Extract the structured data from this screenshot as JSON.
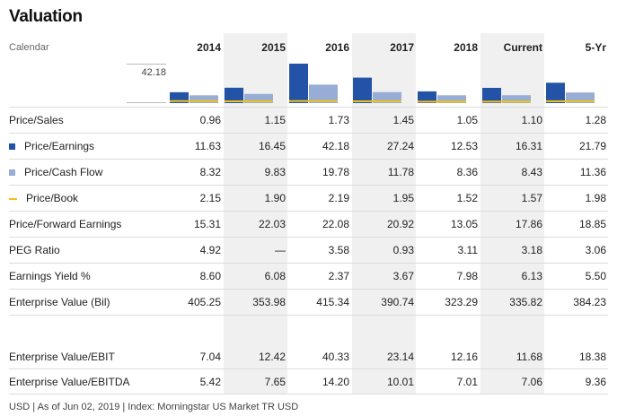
{
  "title": "Valuation",
  "calendar_label": "Calendar",
  "max_label": "42.18",
  "footer": "USD | As of Jun 02, 2019 | Index: Morningstar US Market TR USD",
  "colors": {
    "earnings": "#2353a7",
    "cashflow": "#97add6",
    "book": "#f2c314",
    "shade": "#f0f0f0"
  },
  "columns": [
    "2014",
    "2015",
    "2016",
    "2017",
    "2018",
    "Current",
    "5-Yr"
  ],
  "rows": [
    {
      "label": "Price/Sales",
      "values": [
        "0.96",
        "1.15",
        "1.73",
        "1.45",
        "1.05",
        "1.10",
        "1.28"
      ]
    },
    {
      "label": "Price/Earnings",
      "values": [
        "11.63",
        "16.45",
        "42.18",
        "27.24",
        "12.53",
        "16.31",
        "21.79"
      ]
    },
    {
      "label": "Price/Cash Flow",
      "values": [
        "8.32",
        "9.83",
        "19.78",
        "11.78",
        "8.36",
        "8.43",
        "11.36"
      ]
    },
    {
      "label": "Price/Book",
      "values": [
        "2.15",
        "1.90",
        "2.19",
        "1.95",
        "1.52",
        "1.57",
        "1.98"
      ]
    },
    {
      "label": "Price/Forward Earnings",
      "values": [
        "15.31",
        "22.03",
        "22.08",
        "20.92",
        "13.05",
        "17.86",
        "18.85"
      ]
    },
    {
      "label": "PEG Ratio",
      "values": [
        "4.92",
        "—",
        "3.58",
        "0.93",
        "3.11",
        "3.18",
        "3.06"
      ]
    },
    {
      "label": "Earnings Yield %",
      "values": [
        "8.60",
        "6.08",
        "2.37",
        "3.67",
        "7.98",
        "6.13",
        "5.50"
      ]
    },
    {
      "label": "Enterprise Value (Bil)",
      "values": [
        "405.25",
        "353.98",
        "415.34",
        "390.74",
        "323.29",
        "335.82",
        "384.23"
      ]
    },
    {
      "label": "Enterprise Value/EBIT",
      "values": [
        "7.04",
        "12.42",
        "40.33",
        "23.14",
        "12.16",
        "11.68",
        "18.38"
      ]
    },
    {
      "label": "Enterprise Value/EBITDA",
      "values": [
        "5.42",
        "7.65",
        "14.20",
        "10.01",
        "7.01",
        "7.06",
        "9.36"
      ]
    }
  ],
  "chart_data": {
    "type": "bar",
    "categories": [
      "2014",
      "2015",
      "2016",
      "2017",
      "2018",
      "Current",
      "5-Yr"
    ],
    "ylim": [
      0,
      42.18
    ],
    "series": [
      {
        "name": "Price/Earnings",
        "values": [
          11.63,
          16.45,
          42.18,
          27.24,
          12.53,
          16.31,
          21.79
        ]
      },
      {
        "name": "Price/Cash Flow",
        "values": [
          8.32,
          9.83,
          19.78,
          11.78,
          8.36,
          8.43,
          11.36
        ]
      },
      {
        "name": "Price/Book",
        "values": [
          2.15,
          1.9,
          2.19,
          1.95,
          1.52,
          1.57,
          1.98
        ]
      }
    ]
  }
}
